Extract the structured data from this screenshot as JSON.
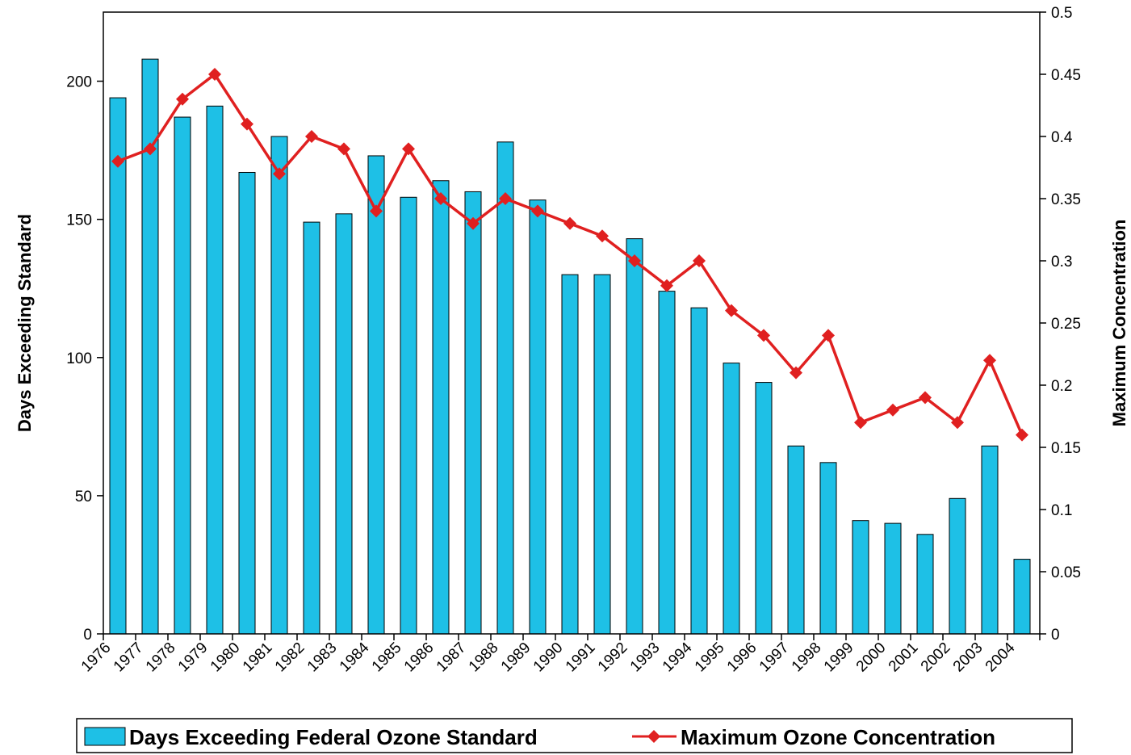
{
  "chart_data": {
    "type": "bar",
    "categories": [
      "1976",
      "1977",
      "1978",
      "1979",
      "1980",
      "1981",
      "1982",
      "1983",
      "1984",
      "1985",
      "1986",
      "1987",
      "1988",
      "1989",
      "1990",
      "1991",
      "1992",
      "1993",
      "1994",
      "1995",
      "1996",
      "1997",
      "1998",
      "1999",
      "2000",
      "2001",
      "2002",
      "2003",
      "2004"
    ],
    "series": [
      {
        "name": "Days Exceeding Federal Ozone Standard",
        "type": "bar",
        "axis": "left",
        "color": "#1ec0e6",
        "values": [
          194,
          208,
          187,
          191,
          167,
          180,
          149,
          152,
          173,
          158,
          164,
          160,
          178,
          157,
          130,
          130,
          143,
          124,
          118,
          98,
          91,
          68,
          62,
          41,
          40,
          36,
          49,
          68,
          27
        ]
      },
      {
        "name": "Maximum Ozone Concentration",
        "type": "line",
        "axis": "right",
        "color": "#e02020",
        "marker": "diamond",
        "values": [
          0.38,
          0.39,
          0.43,
          0.45,
          0.41,
          0.37,
          0.4,
          0.39,
          0.34,
          0.39,
          0.35,
          0.33,
          0.35,
          0.34,
          0.33,
          0.32,
          0.3,
          0.28,
          0.3,
          0.26,
          0.24,
          0.21,
          0.24,
          0.17,
          0.18,
          0.19,
          0.17,
          0.22,
          0.16
        ]
      }
    ],
    "ylabel": "Days Exceeding Standard",
    "y2label": "Maximum Concentration",
    "ylim": [
      0,
      225
    ],
    "yticks": [
      "0",
      "50",
      "100",
      "150",
      "200"
    ],
    "y2lim": [
      0,
      0.5
    ],
    "y2ticks": [
      "0",
      "0.05",
      "0.1",
      "0.15",
      "0.2",
      "0.25",
      "0.3",
      "0.35",
      "0.4",
      "0.45",
      "0.5"
    ],
    "grid": false,
    "legend_position": "bottom"
  }
}
